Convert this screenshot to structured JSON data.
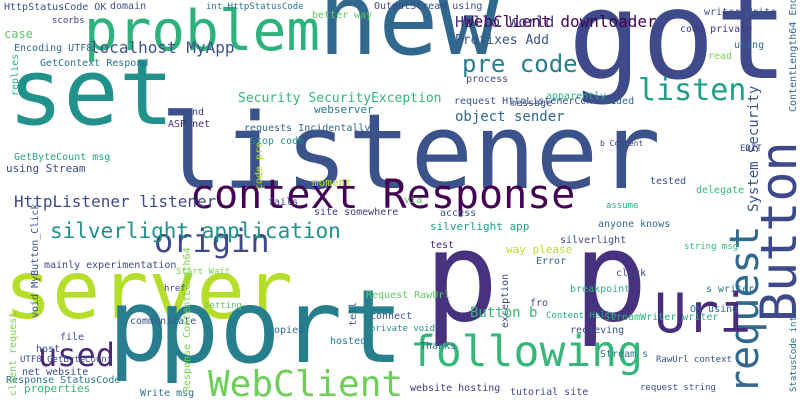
{
  "words": [
    {
      "text": "listener",
      "color": "#3b528b"
    },
    {
      "text": "server",
      "color": "#b5de2b"
    },
    {
      "text": "p p",
      "color": "#46327e"
    },
    {
      "text": "got",
      "color": "#3e4a89"
    },
    {
      "text": "new",
      "color": "#31688e"
    },
    {
      "text": "set",
      "color": "#21918c"
    },
    {
      "text": "problem",
      "color": "#2db27d"
    },
    {
      "text": "p",
      "color": "#287d8e"
    },
    {
      "text": "port",
      "color": "#277f8e"
    },
    {
      "text": "context Response",
      "color": "#440154"
    },
    {
      "text": "Button",
      "color": "#3e4989"
    },
    {
      "text": "request",
      "color": "#31688e"
    },
    {
      "text": "Uri",
      "color": "#472d7b"
    },
    {
      "text": "following",
      "color": "#35b779"
    },
    {
      "text": "WebClient",
      "color": "#6ece58"
    },
    {
      "text": "used",
      "color": "#482878"
    },
    {
      "text": "origin",
      "color": "#3e4a89"
    },
    {
      "text": "silverlight application",
      "color": "#21918c"
    },
    {
      "text": "HttpListener listener",
      "color": "#3e4989"
    },
    {
      "text": "WebClient downloader",
      "color": "#440154"
    },
    {
      "text": "Hello World",
      "color": "#46327e"
    },
    {
      "text": "Prefixes Add",
      "color": "#3b528b"
    },
    {
      "text": "pre code",
      "color": "#287d8e"
    },
    {
      "text": "listen",
      "color": "#1f9e89"
    },
    {
      "text": "localhost MyApp",
      "color": "#3b528b"
    },
    {
      "text": "Security SecurityException",
      "color": "#35b779"
    },
    {
      "text": "object sender",
      "color": "#31688e"
    },
    {
      "text": "System Security",
      "color": "#3b528b"
    },
    {
      "text": "HttpStatusCode OK",
      "color": "#3b528b"
    },
    {
      "text": "scorbs",
      "color": "#443983"
    },
    {
      "text": "case",
      "color": "#5ec962"
    },
    {
      "text": "Encoding UTF8",
      "color": "#31688e"
    },
    {
      "text": "GetContext Respond",
      "color": "#2c728e"
    },
    {
      "text": "domain",
      "color": "#3b528b"
    },
    {
      "text": "int HttpStatusCode",
      "color": "#2c728e"
    },
    {
      "text": "better way",
      "color": "#5ec962"
    },
    {
      "text": "OutputStream using",
      "color": "#3e4a89"
    },
    {
      "text": "writer Write",
      "color": "#3b528b"
    },
    {
      "text": "code private",
      "color": "#443983"
    },
    {
      "text": "using",
      "color": "#31688e"
    },
    {
      "text": "read",
      "color": "#7ad151"
    },
    {
      "text": "process",
      "color": "#3e4989"
    },
    {
      "text": "apparently",
      "color": "#2db27d"
    },
    {
      "text": "message",
      "color": "#3e4a89"
    },
    {
      "text": "added",
      "color": "#31688e"
    },
    {
      "text": "request HttpListenerContext",
      "color": "#3b528b"
    },
    {
      "text": "ASP net",
      "color": "#472d7b"
    },
    {
      "text": "send",
      "color": "#3e4a89"
    },
    {
      "text": "webserver",
      "color": "#2a788e"
    },
    {
      "text": "requests Incidentally",
      "color": "#31688e"
    },
    {
      "text": "GetByteCount msg",
      "color": "#22a884"
    },
    {
      "text": "using Stream",
      "color": "#3e4a89"
    },
    {
      "text": "Stop code",
      "color": "#21918c"
    },
    {
      "text": "moment",
      "color": "#b5de2b"
    },
    {
      "text": "fails",
      "color": "#3e4a89"
    },
    {
      "text": "site somewhere",
      "color": "#443983"
    },
    {
      "text": "via",
      "color": "#5ec962"
    },
    {
      "text": "b Content",
      "color": "#3e4989"
    },
    {
      "text": "tested",
      "color": "#3b528b"
    },
    {
      "text": "EDIT",
      "color": "#3e4a89"
    },
    {
      "text": "delegate",
      "color": "#35b779"
    },
    {
      "text": "assume",
      "color": "#2db27d"
    },
    {
      "text": "anyone knows",
      "color": "#31688e"
    },
    {
      "text": "access",
      "color": "#3b528b"
    },
    {
      "text": "silverlight app",
      "color": "#1f9e89"
    },
    {
      "text": "test",
      "color": "#482878"
    },
    {
      "text": "way please",
      "color": "#b5de2b"
    },
    {
      "text": "Error",
      "color": "#31688e"
    },
    {
      "text": "silverlight",
      "color": "#3e4a89"
    },
    {
      "text": "click",
      "color": "#3e4a89"
    },
    {
      "text": "string msg",
      "color": "#35b779"
    },
    {
      "text": "s writer",
      "color": "#2a788e"
    },
    {
      "text": "OK using",
      "color": "#31688e"
    },
    {
      "text": "StreamWriter writer",
      "color": "#2db27d"
    },
    {
      "text": "breakpoint",
      "color": "#2db27d"
    },
    {
      "text": "fro",
      "color": "#3e4a89"
    },
    {
      "text": "Content Hello",
      "color": "#22a884"
    },
    {
      "text": "recieving",
      "color": "#3b528b"
    },
    {
      "text": "Button b",
      "color": "#35b779"
    },
    {
      "text": "Request RawUrl",
      "color": "#5ec962"
    },
    {
      "text": "connect",
      "color": "#3b528b"
    },
    {
      "text": "private void",
      "color": "#21918c"
    },
    {
      "text": "hosted",
      "color": "#2a788e"
    },
    {
      "text": "Thanks",
      "color": "#31688e"
    },
    {
      "text": "website hosting",
      "color": "#443983"
    },
    {
      "text": "tutorial site",
      "color": "#3e4989"
    },
    {
      "text": "Stream s",
      "color": "#2a788e"
    },
    {
      "text": "RawUrl context",
      "color": "#3b528b"
    },
    {
      "text": "request string",
      "color": "#3b528b"
    },
    {
      "text": "mainly experimentation",
      "color": "#3e4989"
    },
    {
      "text": "Start Wait",
      "color": "#7ad151"
    },
    {
      "text": "href",
      "color": "#3e4a89"
    },
    {
      "text": "communicate",
      "color": "#3b528b"
    },
    {
      "text": "setting",
      "color": "#5ec962"
    },
    {
      "text": "copied",
      "color": "#31688e"
    },
    {
      "text": "Write msg",
      "color": "#2c728e"
    },
    {
      "text": "file",
      "color": "#3b528b"
    },
    {
      "text": "host",
      "color": "#3b528b"
    },
    {
      "text": "UTF8 GetByteCount",
      "color": "#3e4a89"
    },
    {
      "text": "net website",
      "color": "#3e4a89"
    },
    {
      "text": "Response StatusCode",
      "color": "#2a788e"
    },
    {
      "text": "properties",
      "color": "#35b779"
    },
    {
      "text": "Response ContentLength64",
      "color": "#7ad151"
    },
    {
      "text": "ContentLength64 Encoding",
      "color": "#31688e"
    },
    {
      "text": "StatusCode int",
      "color": "#2c728e"
    },
    {
      "text": "void MyButton_Click",
      "color": "#3b528b"
    },
    {
      "text": "client request",
      "color": "#7ad151"
    },
    {
      "text": "replies",
      "color": "#2db27d"
    },
    {
      "text": "code pre",
      "color": "#b5de2b"
    },
    {
      "text": "exception",
      "color": "#3e4a89"
    },
    {
      "text": "tell",
      "color": "#3b528b"
    }
  ]
}
